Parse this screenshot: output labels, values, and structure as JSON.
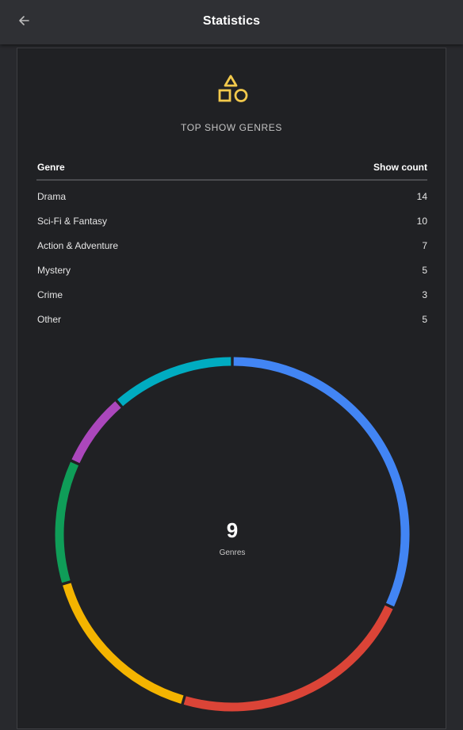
{
  "app_bar": {
    "title": "Statistics",
    "back_icon": "arrow-back-icon"
  },
  "card": {
    "icon": "shapes-icon",
    "icon_color": "#f2c94c",
    "section_title": "TOP SHOW GENRES",
    "table": {
      "col_genre": "Genre",
      "col_count": "Show count",
      "rows": [
        {
          "genre": "Drama",
          "count": "14"
        },
        {
          "genre": "Sci-Fi & Fantasy",
          "count": "10"
        },
        {
          "genre": "Action & Adventure",
          "count": "7"
        },
        {
          "genre": "Mystery",
          "count": "5"
        },
        {
          "genre": "Crime",
          "count": "3"
        },
        {
          "genre": "Other",
          "count": "5"
        }
      ]
    },
    "donut": {
      "center_value": "9",
      "center_label": "Genres"
    }
  },
  "chart_data": {
    "type": "pie",
    "style": "donut",
    "segments": [
      {
        "value": 14,
        "color": "#4285f4"
      },
      {
        "value": 10,
        "color": "#db4437"
      },
      {
        "value": 7,
        "color": "#f4b400"
      },
      {
        "value": 5,
        "color": "#0f9d58"
      },
      {
        "value": 3,
        "color": "#ab47bc"
      },
      {
        "value": 5,
        "color": "#00acc1"
      }
    ]
  }
}
